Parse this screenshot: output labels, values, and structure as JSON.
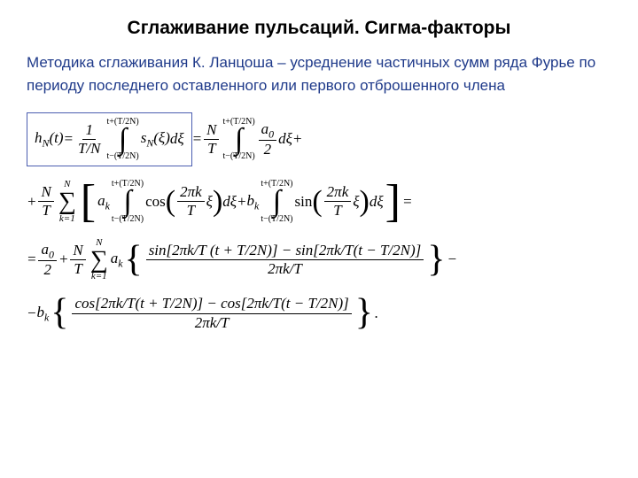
{
  "title": "Сглаживание пульсаций. Сигма-факторы",
  "intro": "Методика сглаживания К. Ланцоша – усреднение частичных сумм ряда Фурье по периоду последнего оставленного или первого отброшенного члена",
  "colors": {
    "intro_text": "#1f3a8a",
    "box_border": "#4a5db0",
    "background": "#ffffff",
    "text": "#000000"
  },
  "typography": {
    "title_fontsize": 21,
    "title_weight": "bold",
    "intro_fontsize": 17,
    "math_fontsize": 17,
    "math_family": "Times New Roman"
  },
  "eq": {
    "hN_t": "h",
    "sub_N": "N",
    "arg_t": "(t)",
    "eq_sign": " = ",
    "one": "1",
    "T_over_N": "T/N",
    "lim_top": "t+(T/2N)",
    "lim_bot": "t−(T/2N)",
    "sN_xi": "s",
    "xi": "(ξ)",
    "dxi": "dξ",
    "N_over_T_num": "N",
    "N_over_T_den": "T",
    "a0": "a",
    "sub_0": "0",
    "two": "2",
    "plus": " + ",
    "minus": " − ",
    "sum_top": "N",
    "sum_bot": "k=1",
    "ak": "a",
    "bk": "b",
    "sub_k": "k",
    "cos": "cos",
    "sin": "sin",
    "twopik": "2πk",
    "T": "T",
    "xi_sym": " ξ",
    "eq_end": " =",
    "line3_num1": "sin[2πk/T (t + T/2N)] − sin[2πk/T(t − T/2N)]",
    "line3_den": "2πk/T",
    "line4_num1": "cos[2πk/T(t + T/2N)] − cos[2πk/T(t − T/2N)]",
    "line4_den": "2πk/T",
    "dot": " ."
  }
}
